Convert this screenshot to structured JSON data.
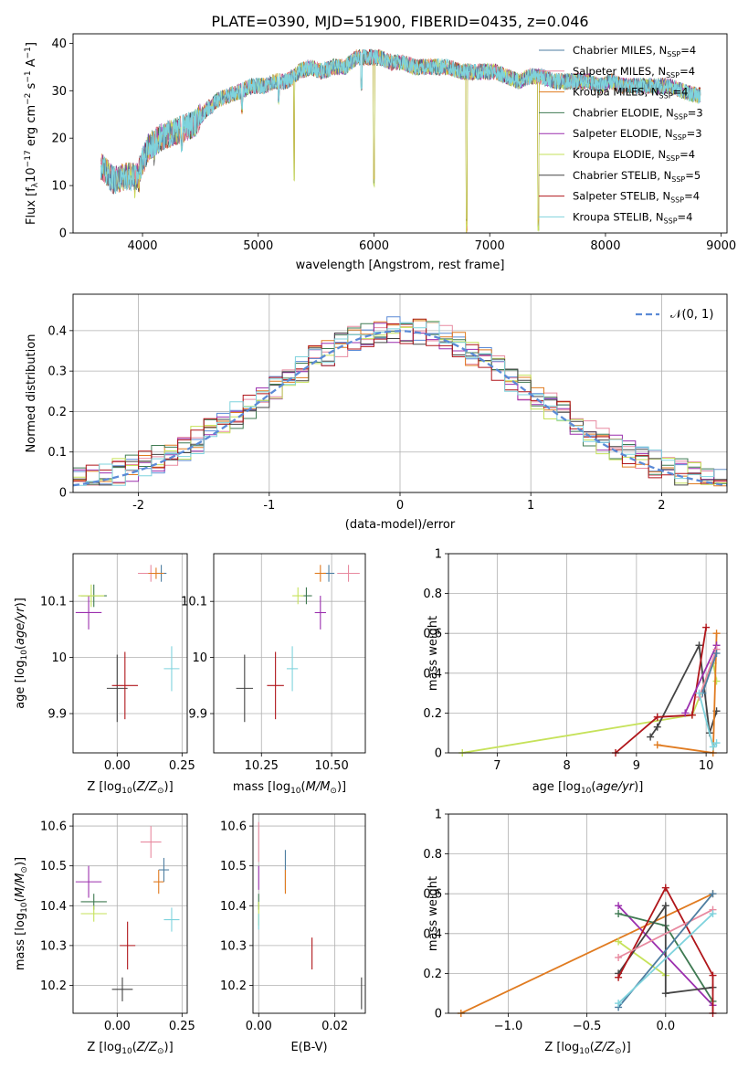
{
  "figure": {
    "title": "PLATE=0390, MJD=51900, FIBERID=0435, z=0.046"
  },
  "models": [
    {
      "name": "Chabrier MILES, N$_{SSP}$=4",
      "color": "#4e7ea1"
    },
    {
      "name": "Salpeter MILES, N$_{SSP}$=4",
      "color": "#e88aa0"
    },
    {
      "name": "Kroupa MILES, N$_{SSP}$=4",
      "color": "#e07b20"
    },
    {
      "name": "Chabrier ELODIE, N$_{SSP}$=3",
      "color": "#3f7a52"
    },
    {
      "name": "Salpeter ELODIE, N$_{SSP}$=3",
      "color": "#9b2fae"
    },
    {
      "name": "Kroupa ELODIE, N$_{SSP}$=4",
      "color": "#c6e25a"
    },
    {
      "name": "Chabrier STELIB, N$_{SSP}$=5",
      "color": "#444444"
    },
    {
      "name": "Salpeter STELIB, N$_{SSP}$=4",
      "color": "#b0161b"
    },
    {
      "name": "Kroupa STELIB, N$_{SSP}$=4",
      "color": "#7fd3dd"
    }
  ],
  "legend_labels": [
    "Chabrier MILES, N",
    "Salpeter MILES, N",
    "Kroupa MILES, N",
    "Chabrier ELODIE, N",
    "Salpeter ELODIE, N",
    "Kroupa ELODIE, N",
    "Chabrier STELIB, N",
    "Salpeter STELIB, N",
    "Kroupa STELIB, N"
  ],
  "legend_counts": [
    "=4",
    "=4",
    "=4",
    "=3",
    "=3",
    "=4",
    "=5",
    "=4",
    "=4"
  ],
  "legend_sub": "SSP",
  "chart_data": [
    {
      "type": "line",
      "id": "spectrum",
      "xlabel": "wavelength [Angstrom, rest frame]",
      "ylabel": "Flux [f",
      "xlim": [
        3400,
        9050
      ],
      "ylim": [
        0,
        42
      ],
      "xticks": [
        4000,
        5000,
        6000,
        7000,
        8000,
        9000
      ],
      "yticks": [
        0,
        10,
        20,
        30,
        40
      ],
      "x": [
        3650,
        3750,
        3850,
        3950,
        4050,
        4150,
        4250,
        4350,
        4450,
        4550,
        4650,
        4750,
        4850,
        4950,
        5050,
        5150,
        5250,
        5350,
        5450,
        5550,
        5650,
        5750,
        5850,
        5950,
        6050,
        6150,
        6250,
        6350,
        6450,
        6550,
        6650,
        6750,
        6850,
        6950,
        7050,
        7150,
        7250,
        7350,
        7450,
        7550,
        7650,
        7750,
        7850,
        7950,
        8050,
        8150,
        8250,
        8350,
        8450,
        8550,
        8650,
        8800
      ],
      "series": [
        {
          "name": "Kroupa STELIB, N$_{SSP}$=4",
          "values": [
            14,
            11,
            12,
            12,
            18,
            20,
            21,
            22,
            23,
            26,
            28,
            29,
            30,
            31,
            31,
            32,
            32,
            34,
            35,
            34,
            35,
            35,
            37,
            37,
            37,
            36,
            36,
            35,
            35,
            35,
            35,
            34,
            34,
            34,
            34,
            33,
            32,
            33,
            33,
            32,
            32,
            32,
            32,
            31,
            32,
            31,
            31,
            31,
            31,
            31,
            30,
            29
          ]
        }
      ],
      "absorption_dips": [
        [
          3934,
          6
        ],
        [
          3969,
          8
        ],
        [
          4102,
          14
        ],
        [
          4340,
          17
        ],
        [
          4861,
          25
        ],
        [
          5175,
          27
        ],
        [
          5310,
          10
        ],
        [
          5893,
          30
        ],
        [
          6000,
          9
        ],
        [
          6563,
          33
        ],
        [
          6800,
          0
        ],
        [
          7420,
          0
        ]
      ]
    },
    {
      "type": "line",
      "id": "residual_hist",
      "xlabel": "(data-model)/error",
      "ylabel": "Normed distribution",
      "xlim": [
        -2.5,
        2.5
      ],
      "ylim": [
        0,
        0.49
      ],
      "xticks": [
        -2,
        -1,
        0,
        1,
        2
      ],
      "yticks": [
        0.0,
        0.1,
        0.2,
        0.3,
        0.4
      ],
      "grid": true,
      "legend": {
        "label": "𝒩(0, 1)",
        "position": "top-right"
      },
      "bins": {
        "start": -2.5,
        "width": 0.1,
        "count": 50
      },
      "gaussian": {
        "mu": 0,
        "sigma": 1,
        "color": "#5b8ad6"
      }
    },
    {
      "type": "scatter",
      "id": "Z_vs_age",
      "xlabel": "Z [log",
      "ylabel": "age  [log",
      "xlim": [
        -0.17,
        0.27
      ],
      "ylim": [
        9.83,
        10.185
      ],
      "xticks": [
        0.0,
        0.25
      ],
      "xtick_labels": [
        "0.00",
        "0.25"
      ],
      "yticks": [
        9.9,
        10.0,
        10.1
      ],
      "grid": true,
      "points": [
        {
          "x": 0.17,
          "y": 10.15,
          "xerr": 0.02,
          "yerr": 0.015
        },
        {
          "x": 0.13,
          "y": 10.15,
          "xerr": 0.05,
          "yerr": 0.015
        },
        {
          "x": 0.15,
          "y": 10.15,
          "xerr": 0.03,
          "yerr": 0.01
        },
        {
          "x": -0.09,
          "y": 10.11,
          "xerr": 0.05,
          "yerr": 0.02
        },
        {
          "x": -0.11,
          "y": 10.08,
          "xerr": 0.05,
          "yerr": 0.03
        },
        {
          "x": -0.1,
          "y": 10.11,
          "xerr": 0.05,
          "yerr": 0.02
        },
        {
          "x": 0.0,
          "y": 9.945,
          "xerr": 0.04,
          "yerr": 0.06
        },
        {
          "x": 0.03,
          "y": 9.95,
          "xerr": 0.05,
          "yerr": 0.06
        },
        {
          "x": 0.21,
          "y": 9.98,
          "xerr": 0.03,
          "yerr": 0.04
        }
      ]
    },
    {
      "type": "scatter",
      "id": "mass_vs_age",
      "xlabel": "mass [log",
      "ylabel": "",
      "xlim": [
        10.08,
        10.62
      ],
      "ylim": [
        9.83,
        10.185
      ],
      "xticks": [
        10.25,
        10.5
      ],
      "xtick_labels": [
        "10.25",
        "10.50"
      ],
      "yticks": [
        9.9,
        10.0,
        10.1
      ],
      "grid": true,
      "points": [
        {
          "x": 10.49,
          "y": 10.15,
          "xerr": 0.02,
          "yerr": 0.015
        },
        {
          "x": 10.56,
          "y": 10.15,
          "xerr": 0.04,
          "yerr": 0.015
        },
        {
          "x": 10.46,
          "y": 10.15,
          "xerr": 0.02,
          "yerr": 0.015
        },
        {
          "x": 10.41,
          "y": 10.11,
          "xerr": 0.02,
          "yerr": 0.015
        },
        {
          "x": 10.46,
          "y": 10.08,
          "xerr": 0.02,
          "yerr": 0.03
        },
        {
          "x": 10.38,
          "y": 10.11,
          "xerr": 0.02,
          "yerr": 0.015
        },
        {
          "x": 10.19,
          "y": 9.945,
          "xerr": 0.03,
          "yerr": 0.06
        },
        {
          "x": 10.3,
          "y": 9.95,
          "xerr": 0.03,
          "yerr": 0.06
        },
        {
          "x": 10.36,
          "y": 9.98,
          "xerr": 0.02,
          "yerr": 0.04
        }
      ]
    },
    {
      "type": "line",
      "id": "age_vs_weight",
      "xlabel": "age  [log",
      "ylabel": "mass weight",
      "xlim": [
        6.3,
        10.3
      ],
      "ylim": [
        0,
        1
      ],
      "xticks": [
        7,
        8,
        9,
        10
      ],
      "yticks": [
        0.0,
        0.2,
        0.4,
        0.6,
        0.8,
        1.0
      ],
      "grid": true,
      "series": [
        {
          "name": "Kroupa ELODIE, N$_{SSP}$=4",
          "points": [
            [
              6.5,
              0.0
            ],
            [
              9.8,
              0.19
            ],
            [
              10.1,
              0.45
            ],
            [
              10.15,
              0.36
            ]
          ]
        },
        {
          "name": "Chabrier STELIB, N$_{SSP}$=5",
          "points": [
            [
              9.2,
              0.08
            ],
            [
              9.3,
              0.13
            ],
            [
              9.9,
              0.54
            ],
            [
              10.05,
              0.1
            ],
            [
              10.15,
              0.21
            ]
          ]
        },
        {
          "name": "Salpeter STELIB, N$_{SSP}$=4",
          "points": [
            [
              8.7,
              0.0
            ],
            [
              9.3,
              0.18
            ],
            [
              9.8,
              0.19
            ],
            [
              10.0,
              0.63
            ]
          ]
        },
        {
          "name": "Kroupa MILES, N$_{SSP}$=4",
          "points": [
            [
              9.3,
              0.04
            ],
            [
              10.1,
              0.0
            ],
            [
              10.15,
              0.6
            ]
          ]
        },
        {
          "name": "Salpeter ELODIE, N$_{SSP}$=3",
          "points": [
            [
              9.7,
              0.2
            ],
            [
              10.15,
              0.54
            ]
          ]
        },
        {
          "name": "Salpeter MILES, N$_{SSP}$=4",
          "points": [
            [
              9.9,
              0.28
            ],
            [
              10.15,
              0.52
            ]
          ]
        },
        {
          "name": "Chabrier MILES, N$_{SSP}$=4",
          "points": [
            [
              9.95,
              0.3
            ],
            [
              10.15,
              0.5
            ]
          ]
        },
        {
          "name": "Kroupa STELIB, N$_{SSP}$=4",
          "points": [
            [
              9.9,
              0.3
            ],
            [
              10.1,
              0.03
            ],
            [
              10.15,
              0.05
            ]
          ]
        }
      ]
    },
    {
      "type": "scatter",
      "id": "Z_vs_mass",
      "xlabel": "Z [log",
      "ylabel": "mass [log",
      "xlim": [
        -0.17,
        0.27
      ],
      "ylim": [
        10.13,
        10.63
      ],
      "xticks": [
        0.0,
        0.25
      ],
      "xtick_labels": [
        "0.00",
        "0.25"
      ],
      "yticks": [
        10.2,
        10.3,
        10.4,
        10.5,
        10.6
      ],
      "grid": true,
      "points": [
        {
          "x": 0.18,
          "y": 10.49,
          "xerr": 0.02,
          "yerr": 0.03
        },
        {
          "x": 0.13,
          "y": 10.56,
          "xerr": 0.04,
          "yerr": 0.04
        },
        {
          "x": 0.16,
          "y": 10.46,
          "xerr": 0.02,
          "yerr": 0.03
        },
        {
          "x": -0.09,
          "y": 10.41,
          "xerr": 0.05,
          "yerr": 0.02
        },
        {
          "x": -0.11,
          "y": 10.46,
          "xerr": 0.05,
          "yerr": 0.04
        },
        {
          "x": -0.09,
          "y": 10.38,
          "xerr": 0.05,
          "yerr": 0.02
        },
        {
          "x": 0.02,
          "y": 10.19,
          "xerr": 0.04,
          "yerr": 0.03
        },
        {
          "x": 0.04,
          "y": 10.3,
          "xerr": 0.03,
          "yerr": 0.06
        },
        {
          "x": 0.21,
          "y": 10.365,
          "xerr": 0.03,
          "yerr": 0.03
        }
      ]
    },
    {
      "type": "scatter",
      "id": "ebv_vs_mass",
      "xlabel": "E(B-V)",
      "ylabel": "",
      "xlim": [
        -0.0015,
        0.028
      ],
      "ylim": [
        10.13,
        10.63
      ],
      "xticks": [
        0.0,
        0.02
      ],
      "xtick_labels": [
        "0.00",
        "0.02"
      ],
      "yticks": [
        10.2,
        10.3,
        10.4,
        10.5,
        10.6
      ],
      "grid": true,
      "points": [
        {
          "x": 0.007,
          "y": 10.49,
          "xerr": 0.0,
          "yerr": 0.05
        },
        {
          "x": 0.0,
          "y": 10.56,
          "xerr": 0.0,
          "yerr": 0.05
        },
        {
          "x": 0.007,
          "y": 10.46,
          "xerr": 0.0,
          "yerr": 0.03
        },
        {
          "x": 0.0,
          "y": 10.41,
          "xerr": 0.0,
          "yerr": 0.02
        },
        {
          "x": 0.0,
          "y": 10.47,
          "xerr": 0.0,
          "yerr": 0.03
        },
        {
          "x": 0.0,
          "y": 10.38,
          "xerr": 0.0,
          "yerr": 0.03
        },
        {
          "x": 0.027,
          "y": 10.18,
          "xerr": 0.0,
          "yerr": 0.04
        },
        {
          "x": 0.014,
          "y": 10.28,
          "xerr": 0.0,
          "yerr": 0.04
        },
        {
          "x": 0.0,
          "y": 10.36,
          "xerr": 0.0,
          "yerr": 0.02
        }
      ]
    },
    {
      "type": "line",
      "id": "Z_vs_weight",
      "xlabel": "Z [log",
      "ylabel": "mass weight",
      "xlim": [
        -1.38,
        0.39
      ],
      "ylim": [
        0,
        1
      ],
      "xticks": [
        -1.0,
        -0.5,
        0.0
      ],
      "xtick_labels": [
        "−1.0",
        "−0.5",
        "0.0"
      ],
      "yticks": [
        0.0,
        0.2,
        0.4,
        0.6,
        0.8,
        1.0
      ],
      "grid": true,
      "series": [
        {
          "name": "Kroupa MILES, N$_{SSP}$=4",
          "points": [
            [
              -1.3,
              0.0
            ],
            [
              0.3,
              0.6
            ]
          ]
        },
        {
          "name": "Kroupa ELODIE, N$_{SSP}$=4",
          "points": [
            [
              -0.3,
              0.36
            ],
            [
              0.0,
              0.19
            ]
          ]
        },
        {
          "name": "Salpeter ELODIE, N$_{SSP}$=3",
          "points": [
            [
              -0.3,
              0.54
            ],
            [
              0.3,
              0.04
            ]
          ]
        },
        {
          "name": "Chabrier ELODIE, N$_{SSP}$=3",
          "points": [
            [
              -0.3,
              0.5
            ],
            [
              0.0,
              0.44
            ],
            [
              0.3,
              0.06
            ]
          ]
        },
        {
          "name": "Chabrier STELIB, N$_{SSP}$=5",
          "points": [
            [
              -0.3,
              0.2
            ],
            [
              0.0,
              0.54
            ],
            [
              0.0,
              0.1
            ],
            [
              0.3,
              0.13
            ]
          ]
        },
        {
          "name": "Salpeter STELIB, N$_{SSP}$=4",
          "points": [
            [
              -0.3,
              0.18
            ],
            [
              0.0,
              0.63
            ],
            [
              0.3,
              0.19
            ],
            [
              0.3,
              0.0
            ]
          ]
        },
        {
          "name": "Salpeter MILES, N$_{SSP}$=4",
          "points": [
            [
              -0.3,
              0.28
            ],
            [
              0.3,
              0.52
            ]
          ]
        },
        {
          "name": "Chabrier MILES, N$_{SSP}$=4",
          "points": [
            [
              -0.3,
              0.03
            ],
            [
              0.3,
              0.6
            ]
          ]
        },
        {
          "name": "Kroupa STELIB, N$_{SSP}$=4",
          "points": [
            [
              -0.3,
              0.05
            ],
            [
              0.3,
              0.5
            ]
          ]
        }
      ]
    }
  ]
}
